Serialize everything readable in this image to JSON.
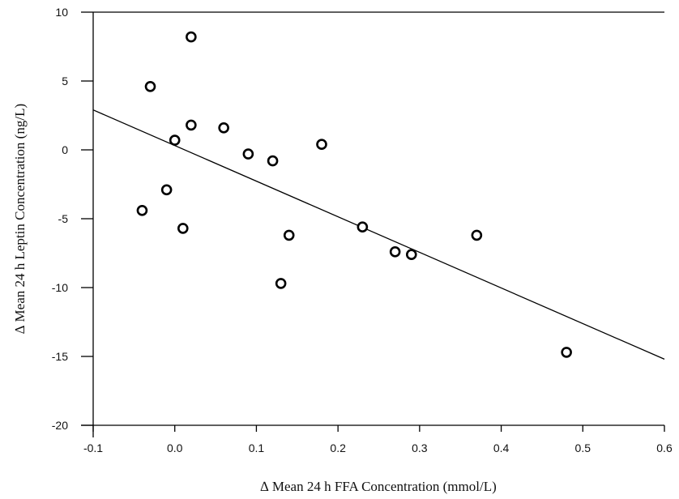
{
  "chart_data": {
    "type": "scatter",
    "xlabel": "∆ Mean 24 h FFA Concentration (mmol/L)",
    "ylabel": "∆ Mean 24 h Leptin Concentration (ng/L)",
    "xlim": [
      -0.1,
      0.6
    ],
    "ylim": [
      -20,
      10
    ],
    "xticks": [
      -0.1,
      0.0,
      0.1,
      0.2,
      0.3,
      0.4,
      0.5,
      0.6
    ],
    "xtick_labels": [
      "-0.1",
      "0.0",
      "0.1",
      "0.2",
      "0.3",
      "0.4",
      "0.5",
      "0.6"
    ],
    "yticks": [
      -20,
      -15,
      -10,
      -5,
      0,
      5,
      10
    ],
    "ytick_labels": [
      "-20",
      "-15",
      "-10",
      "-5",
      "0",
      "5",
      "10"
    ],
    "grid": false,
    "points": [
      {
        "x": -0.04,
        "y": -4.4
      },
      {
        "x": -0.03,
        "y": 4.6
      },
      {
        "x": -0.01,
        "y": -2.9
      },
      {
        "x": 0.0,
        "y": 0.7
      },
      {
        "x": 0.01,
        "y": -5.7
      },
      {
        "x": 0.02,
        "y": 8.2
      },
      {
        "x": 0.02,
        "y": 1.8
      },
      {
        "x": 0.06,
        "y": 1.6
      },
      {
        "x": 0.09,
        "y": -0.3
      },
      {
        "x": 0.12,
        "y": -0.8
      },
      {
        "x": 0.13,
        "y": -9.7
      },
      {
        "x": 0.14,
        "y": -6.2
      },
      {
        "x": 0.18,
        "y": 0.4
      },
      {
        "x": 0.23,
        "y": -5.6
      },
      {
        "x": 0.27,
        "y": -7.4
      },
      {
        "x": 0.29,
        "y": -7.6
      },
      {
        "x": 0.37,
        "y": -6.2
      },
      {
        "x": 0.48,
        "y": -14.7
      }
    ],
    "fit_line": {
      "x": [
        -0.1,
        0.6
      ],
      "y": [
        2.9,
        -15.2
      ]
    }
  }
}
